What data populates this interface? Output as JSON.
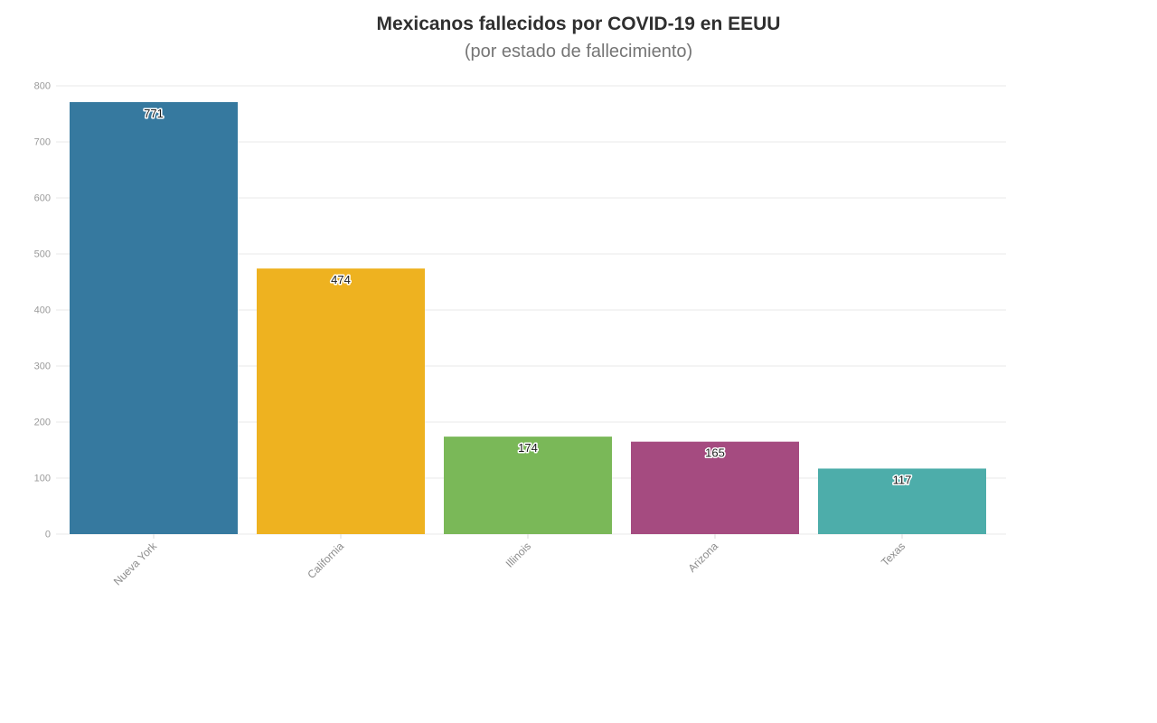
{
  "header": {
    "title": "Mexicanos fallecidos por COVID-19 en EEUU",
    "subtitle": "(por estado de fallecimiento)"
  },
  "chart_data": {
    "type": "bar",
    "title": "Mexicanos fallecidos por COVID-19 en EEUU",
    "subtitle": "(por estado de fallecimiento)",
    "categories": [
      "Nueva York",
      "California",
      "Illinois",
      "Arizona",
      "Texas"
    ],
    "values": [
      771,
      474,
      174,
      165,
      117
    ],
    "value_labels": [
      "771",
      "474",
      "174",
      "165",
      "117"
    ],
    "bar_colors": [
      "#36799f",
      "#eeb220",
      "#7ab858",
      "#a54b80",
      "#4dadaa"
    ],
    "xlabel": "",
    "ylabel": "",
    "ylim": [
      0,
      800
    ],
    "ytick_step": 100,
    "ytick_labels": [
      "0",
      "100",
      "200",
      "300",
      "400",
      "500",
      "600",
      "700",
      "800"
    ],
    "grid": true,
    "legend": false,
    "x_label_rotation_deg": -45
  },
  "colors": {
    "background": "#ffffff",
    "grid": "#eaeaea",
    "tick": "#d9d9d9",
    "title": "#2f2f2f",
    "subtitle": "#757575",
    "axis_label": "#9a9a9a",
    "value_label": "#1d1d1d"
  }
}
